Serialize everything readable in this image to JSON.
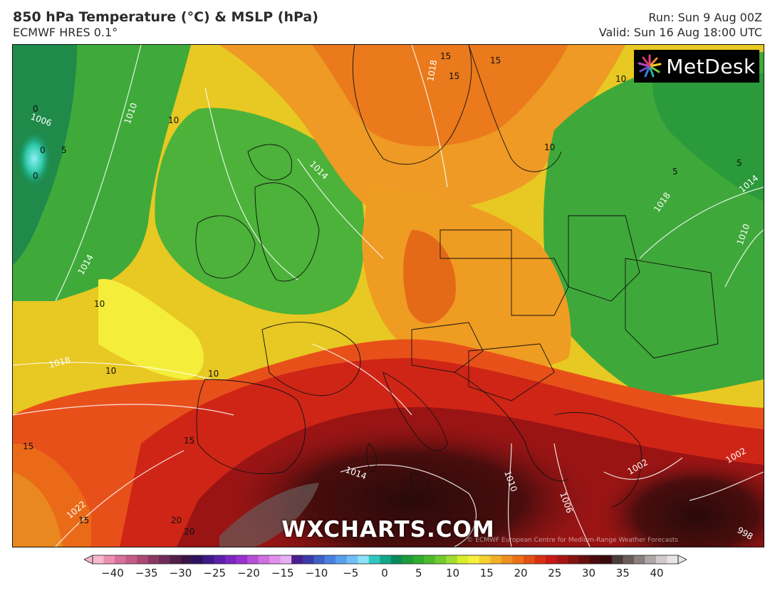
{
  "header": {
    "title": "850 hPa Temperature (°C) & MSLP (hPa)",
    "model": "ECMWF HRES 0.1°",
    "run": "Run: Sun 9 Aug 00Z",
    "valid": "Valid: Sun 16 Aug 18:00 UTC"
  },
  "brand": {
    "name": "MetDesk",
    "icon": "starburst-logo-icon"
  },
  "watermark": "WXCHARTS.COM",
  "copyright": "© ECMWF European Centre for Medium-Range Weather Forecasts",
  "colorbar": {
    "ticks": [
      "−40",
      "−35",
      "−30",
      "−25",
      "−20",
      "−15",
      "−10",
      "−5",
      "0",
      "5",
      "10",
      "15",
      "20",
      "25",
      "30",
      "35",
      "40"
    ],
    "colors": [
      "#f7b8cc",
      "#ec8fb0",
      "#d9729a",
      "#c45d86",
      "#a84a73",
      "#8a3a62",
      "#6d2c55",
      "#521f4a",
      "#3b1547",
      "#2e1260",
      "#3d1a86",
      "#5a20a8",
      "#7a28c0",
      "#9a30d0",
      "#b84ed8",
      "#d070e0",
      "#e090ec",
      "#e8b0f4",
      "#4b1e8c",
      "#3a3aa8",
      "#3f5fc8",
      "#4a80e0",
      "#5aa0ee",
      "#70c0f6",
      "#90e0f8",
      "#30c8c0",
      "#10a888",
      "#0a8a5a",
      "#1d9a3a",
      "#33aa30",
      "#4dbb2e",
      "#70cc30",
      "#a0dd30",
      "#d8ee2a",
      "#f8f040",
      "#f5d030",
      "#f2b028",
      "#ee9020",
      "#ea7018",
      "#e35016",
      "#d83014",
      "#c81818",
      "#a81414",
      "#861212",
      "#641010",
      "#480c0c",
      "#3a0a0a",
      "#4a3a3a",
      "#6a5a5a",
      "#8a8080",
      "#b0a8a8",
      "#d0caca",
      "#e8e4e4"
    ]
  },
  "map": {
    "temperature_labels": [
      "15",
      "15",
      "10",
      "10",
      "0",
      "0",
      "5",
      "0",
      "10",
      "10",
      "15",
      "15",
      "20",
      "10",
      "5",
      "5",
      "10",
      "15",
      "15",
      "20"
    ],
    "isobar_labels": [
      "1018",
      "1010",
      "1014",
      "1006",
      "1014",
      "1018",
      "1022",
      "1014",
      "1010",
      "1006",
      "1002",
      "998",
      "1018",
      "1014",
      "1010",
      "1002"
    ]
  }
}
